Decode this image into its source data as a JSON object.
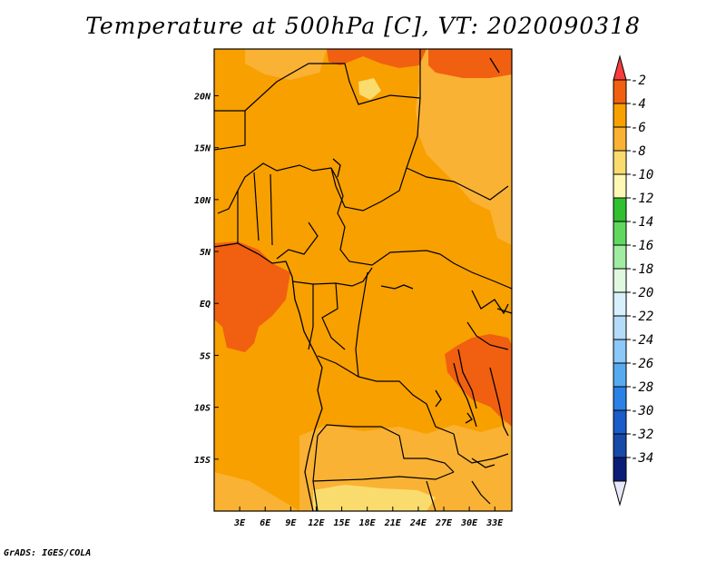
{
  "title": "Temperature at 500hPa [C], VT: 2020090318",
  "credit": "GrADS: IGES/COLA",
  "map": {
    "lat_labels": [
      "20N",
      "15N",
      "10N",
      "5N",
      "EQ",
      "5S",
      "10S",
      "15S"
    ],
    "lon_labels": [
      "3E",
      "6E",
      "9E",
      "12E",
      "15E",
      "18E",
      "21E",
      "24E",
      "27E",
      "30E",
      "33E"
    ],
    "lon_range": [
      0,
      35
    ],
    "lat_range": [
      -20,
      24.5
    ]
  },
  "colorbar": {
    "labels": [
      "-2",
      "-4",
      "-6",
      "-8",
      "-10",
      "-12",
      "-14",
      "-16",
      "-18",
      "-20",
      "-22",
      "-24",
      "-26",
      "-28",
      "-30",
      "-32",
      "-34"
    ],
    "colors": [
      "#fa3c3c",
      "#f06010",
      "#f8a000",
      "#fab234",
      "#fadc6e",
      "#fff8b4",
      "#30c030",
      "#60d860",
      "#a0eca0",
      "#e0f8e0",
      "#d8f0fc",
      "#b4dcfa",
      "#8cc8f8",
      "#58aaf0",
      "#2a82e6",
      "#1a5cc8",
      "#1848a8",
      "#0a1e78",
      "#e8e8fa"
    ]
  },
  "chart_data": {
    "type": "heatmap",
    "title": "Temperature at 500hPa [C], VT: 2020090318",
    "variable": "Temperature at 500hPa",
    "units": "C",
    "valid_time": "2020090318",
    "x_ticks": [
      "3E",
      "6E",
      "9E",
      "12E",
      "15E",
      "18E",
      "21E",
      "24E",
      "27E",
      "30E",
      "33E"
    ],
    "y_ticks": [
      "20N",
      "15N",
      "10N",
      "5N",
      "EQ",
      "5S",
      "10S",
      "15S"
    ],
    "color_scale": [
      -34,
      -32,
      -30,
      -28,
      -26,
      -24,
      -22,
      -20,
      -18,
      -16,
      -14,
      -12,
      -10,
      -8,
      -6,
      -4,
      -2
    ],
    "dominant_range": [
      -6,
      -4
    ],
    "warm_areas": [
      "Gulf of Guinea coast (-4 to -2)",
      "Lake Tanganyika region (-4 to -2)",
      "Northern border near 22N (-4 to -2)"
    ],
    "cool_areas": [
      "Southern Angola / Zambia (-8 to -6)",
      "Northeast Sudan (-8 to -6)"
    ]
  }
}
